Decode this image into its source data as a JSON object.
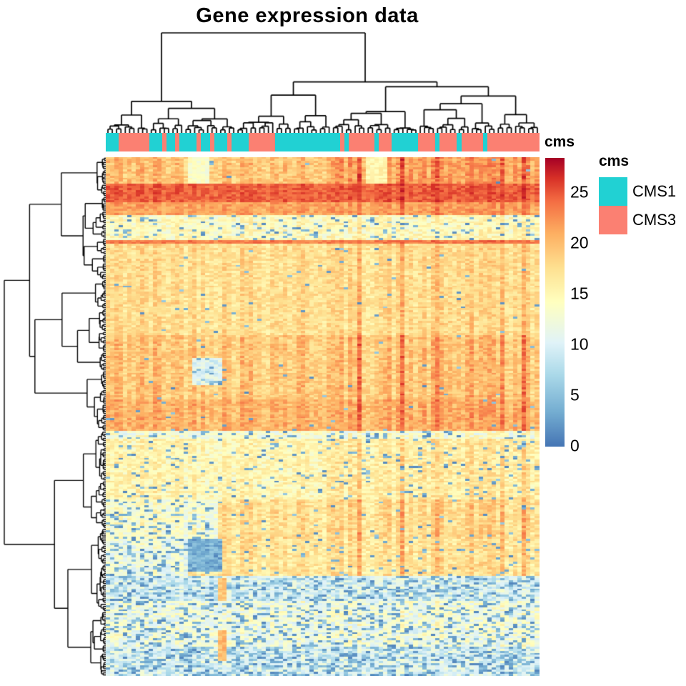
{
  "title": "Gene expression data",
  "annotation": {
    "label": "cms",
    "classes": {
      "CMS1": "#21D1D3",
      "CMS3": "#FB8072"
    },
    "runs": [
      [
        "CMS1",
        3
      ],
      [
        "CMS3",
        7
      ],
      [
        "CMS1",
        3
      ],
      [
        "CMS3",
        1
      ],
      [
        "CMS1",
        2
      ],
      [
        "CMS3",
        1
      ],
      [
        "CMS1",
        4
      ],
      [
        "CMS3",
        1
      ],
      [
        "CMS1",
        2
      ],
      [
        "CMS3",
        1
      ],
      [
        "CMS1",
        3
      ],
      [
        "CMS3",
        1
      ],
      [
        "CMS1",
        4
      ],
      [
        "CMS3",
        6
      ],
      [
        "CMS1",
        15
      ],
      [
        "CMS3",
        1
      ],
      [
        "CMS1",
        1
      ],
      [
        "CMS3",
        6
      ],
      [
        "CMS1",
        1
      ],
      [
        "CMS3",
        3
      ],
      [
        "CMS1",
        6
      ],
      [
        "CMS3",
        4
      ],
      [
        "CMS1",
        1
      ],
      [
        "CMS3",
        4
      ],
      [
        "CMS1",
        1
      ],
      [
        "CMS3",
        5
      ],
      [
        "CMS1",
        1
      ],
      [
        "CMS3",
        12
      ]
    ]
  },
  "legend": {
    "title": "cms",
    "items": [
      {
        "label": "CMS1",
        "color": "#21D1D3"
      },
      {
        "label": "CMS3",
        "color": "#FB8072"
      }
    ]
  },
  "colorbar": {
    "ticks": [
      25,
      20,
      15,
      10,
      5,
      0
    ],
    "vmin": -0.1,
    "vmax": 28.4
  },
  "chart_data": {
    "type": "heatmap",
    "title": "Gene expression data",
    "n_rows": 250,
    "n_cols": 100,
    "value_range": [
      0,
      28.4
    ],
    "legend_position": "right",
    "row_dendrogram": true,
    "column_dendrogram": true,
    "column_annotation_name": "cms",
    "column_annotation_levels": [
      "CMS1",
      "CMS3"
    ],
    "colormap_stops": [
      [
        0.0,
        "#4575B4"
      ],
      [
        0.12,
        "#74ADD1"
      ],
      [
        0.25,
        "#ABD9E9"
      ],
      [
        0.36,
        "#E0F3F8"
      ],
      [
        0.5,
        "#FFFFBF"
      ],
      [
        0.62,
        "#FEE090"
      ],
      [
        0.74,
        "#FDAE61"
      ],
      [
        0.85,
        "#F46D43"
      ],
      [
        0.93,
        "#D73027"
      ],
      [
        1.0,
        "#A50026"
      ]
    ],
    "seeds": {
      "cells": 42,
      "top_tree": 7,
      "left_tree": 13
    },
    "warm_cols": {
      "cols": [
        58,
        68,
        76,
        84,
        91,
        96
      ],
      "add": 2.2
    },
    "row_bands": [
      {
        "r": [
          0,
          13
        ],
        "mean": 19.5,
        "noise": 2.0,
        "colAmp": 1.3,
        "blue": 0.005,
        "grad": [
          52,
          1.8
        ]
      },
      {
        "r": [
          13,
          22
        ],
        "mean": 24.6,
        "noise": 1.4,
        "colAmp": 0.5,
        "blue": 0.0
      },
      {
        "r": [
          22,
          28
        ],
        "mean": 21.5,
        "noise": 1.6,
        "colAmp": 0.8,
        "blue": 0.0
      },
      {
        "r": [
          28,
          40
        ],
        "mean": 14.5,
        "noise": 2.6,
        "colAmp": 0.6,
        "blue": 0.1
      },
      {
        "r": [
          40,
          42
        ],
        "mean": 23.5,
        "noise": 1.4,
        "colAmp": 0.4,
        "blue": 0.0
      },
      {
        "r": [
          42,
          86
        ],
        "mean": 17.6,
        "noise": 2.0,
        "colAmp": 1.0,
        "blue": 0.012
      },
      {
        "r": [
          86,
          117
        ],
        "mean": 19.2,
        "noise": 2.0,
        "colAmp": 1.5,
        "blue": 0.012
      },
      {
        "r": [
          117,
          132
        ],
        "mean": 20.6,
        "noise": 1.8,
        "colAmp": 1.2,
        "blue": 0.01
      },
      {
        "r": [
          132,
          136
        ],
        "mean": 13.0,
        "noise": 3.0,
        "colAmp": 0.5,
        "blue": 0.18
      },
      {
        "r": [
          136,
          165
        ],
        "mean": 15.2,
        "noise": 2.4,
        "colAmp": 0.8,
        "blue": 0.07,
        "grad": [
          50,
          1.0
        ]
      },
      {
        "r": [
          165,
          184
        ],
        "mean": 17.6,
        "noise": 2.2,
        "colAmp": 1.3,
        "blue": 0.03,
        "left": {
          "cols": 26,
          "mean": 13.5,
          "blue": 0.2
        }
      },
      {
        "r": [
          184,
          202
        ],
        "mean": 17.0,
        "noise": 2.2,
        "colAmp": 1.2,
        "blue": 0.05,
        "left": {
          "cols": 19,
          "mean": 12.0,
          "blue": 0.26
        }
      },
      {
        "r": [
          202,
          214
        ],
        "mean": 9.8,
        "noise": 3.0,
        "colAmp": 0.4,
        "blue": 0.3
      },
      {
        "r": [
          214,
          236
        ],
        "mean": 12.2,
        "noise": 3.0,
        "colAmp": 0.5,
        "blue": 0.24
      },
      {
        "r": [
          236,
          250
        ],
        "mean": 10.0,
        "noise": 3.0,
        "colAmp": 0.4,
        "blue": 0.34
      }
    ],
    "patches": [
      {
        "r": [
          0,
          13
        ],
        "c": [
          19,
          24
        ],
        "mean": 13.5,
        "noise": 1.5,
        "blue": 0.02
      },
      {
        "r": [
          0,
          13
        ],
        "c": [
          60,
          65
        ],
        "mean": 15.5,
        "noise": 1.5,
        "blue": 0.0
      },
      {
        "r": [
          2,
          4
        ],
        "c": [
          24,
          25
        ],
        "mean": 3.0,
        "noise": 1.0,
        "blue": 0.5
      },
      {
        "r": [
          97,
          110
        ],
        "c": [
          20,
          27
        ],
        "mean": 10.5,
        "noise": 2.2,
        "blue": 0.18
      },
      {
        "r": [
          184,
          200
        ],
        "c": [
          19,
          27
        ],
        "mean": 4.0,
        "noise": 2.0,
        "blue": 0.5
      },
      {
        "r": [
          203,
          214
        ],
        "c": [
          26,
          28
        ],
        "mean": 19.5,
        "noise": 1.5,
        "blue": 0.0
      },
      {
        "r": [
          228,
          243
        ],
        "c": [
          26,
          28
        ],
        "mean": 20.0,
        "noise": 1.5,
        "blue": 0.0
      }
    ]
  }
}
